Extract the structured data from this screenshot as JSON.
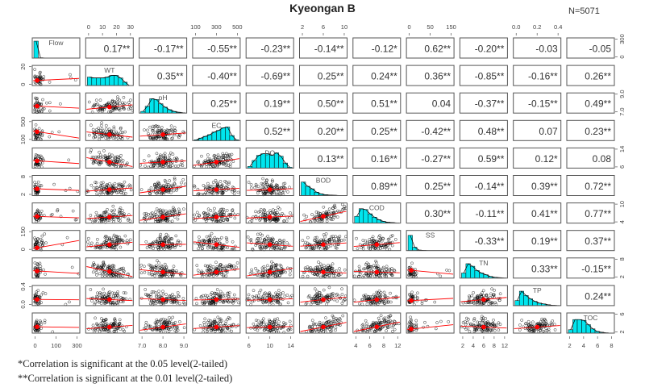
{
  "chart_data": {
    "type": "scatter-matrix",
    "title": "Kyeongan B",
    "annotation": "N=5071",
    "variables": [
      "Flow",
      "WT",
      "pH",
      "EC",
      "DO",
      "BOD",
      "COD",
      "SS",
      "TN",
      "TP",
      "TOC"
    ],
    "correlations": [
      [
        "",
        "0.17**",
        "-0.17**",
        "-0.55**",
        "-0.23**",
        "-0.14**",
        "-0.12*",
        "0.62**",
        "-0.20**",
        "-0.03",
        "-0.05"
      ],
      [
        "",
        "",
        "0.35**",
        "-0.40**",
        "-0.69**",
        "0.25**",
        "0.24**",
        "0.36**",
        "-0.85**",
        "-0.16**",
        "0.26**"
      ],
      [
        "",
        "",
        "",
        "0.25**",
        "0.19**",
        "0.50**",
        "0.51**",
        "0.04",
        "-0.37**",
        "-0.15**",
        "0.49**"
      ],
      [
        "",
        "",
        "",
        "",
        "0.52**",
        "0.20**",
        "0.25**",
        "-0.42**",
        "0.48**",
        "0.07",
        "0.23**"
      ],
      [
        "",
        "",
        "",
        "",
        "",
        "0.13**",
        "0.16**",
        "-0.27**",
        "0.59**",
        "0.12*",
        "0.08"
      ],
      [
        "",
        "",
        "",
        "",
        "",
        "",
        "0.89**",
        "0.25**",
        "-0.14**",
        "0.39**",
        "0.72**"
      ],
      [
        "",
        "",
        "",
        "",
        "",
        "",
        "",
        "0.30**",
        "-0.11**",
        "0.41**",
        "0.77**"
      ],
      [
        "",
        "",
        "",
        "",
        "",
        "",
        "",
        "",
        "-0.33**",
        "0.19**",
        "0.37**"
      ],
      [
        "",
        "",
        "",
        "",
        "",
        "",
        "",
        "",
        "",
        "0.33**",
        "-0.15**"
      ],
      [
        "",
        "",
        "",
        "",
        "",
        "",
        "",
        "",
        "",
        "",
        "0.24**"
      ],
      [
        "",
        "",
        "",
        "",
        "",
        "",
        "",
        "",
        "",
        "",
        ""
      ]
    ],
    "histograms": {
      "Flow": [
        1.0,
        0.02,
        0.01,
        0.01,
        0,
        0,
        0,
        0,
        0,
        0
      ],
      "WT": [
        0.5,
        0.45,
        0.45,
        0.45,
        0.5,
        0.6,
        0.6,
        0.45,
        0.2,
        0
      ],
      "pH": [
        0.1,
        0.4,
        0.85,
        0.8,
        0.55,
        0.35,
        0.2,
        0.1,
        0.05,
        0.02
      ],
      "EC": [
        0.05,
        0.15,
        0.25,
        0.35,
        0.5,
        0.6,
        0.75,
        0.8,
        0.3,
        0.05
      ],
      "DO": [
        0.1,
        0.45,
        0.75,
        0.85,
        0.85,
        0.75,
        0.9,
        0.7,
        0.3,
        0.05
      ],
      "BOD": [
        0.8,
        0.55,
        0.4,
        0.2,
        0.1,
        0.05,
        0.03,
        0.02,
        0.01,
        0.01
      ],
      "COD": [
        0.4,
        0.85,
        0.8,
        0.55,
        0.35,
        0.2,
        0.1,
        0.05,
        0.03,
        0.01
      ],
      "SS": [
        0.9,
        0.2,
        0.03,
        0.01,
        0,
        0,
        0,
        0,
        0,
        0
      ],
      "TN": [
        0.3,
        0.85,
        0.7,
        0.45,
        0.3,
        0.2,
        0.1,
        0.05,
        0.03,
        0.01
      ],
      "TP": [
        0.3,
        0.85,
        0.6,
        0.4,
        0.25,
        0.15,
        0.1,
        0.05,
        0.02,
        0.01
      ],
      "TOC": [
        0.2,
        0.8,
        0.8,
        0.75,
        0.5,
        0.25,
        0.1,
        0.05,
        0.02,
        0
      ]
    },
    "top_axis": {
      "WT": [
        "0",
        "10",
        "20",
        "30"
      ],
      "EC": [
        "100",
        "300",
        "500"
      ],
      "BOD": [
        "2",
        "6",
        "10"
      ],
      "SS": [
        "0",
        "50",
        "150"
      ],
      "TP": [
        "0.0",
        "0.2",
        "0.4"
      ]
    },
    "bottom_axis": {
      "Flow": [
        "0",
        "100",
        "300"
      ],
      "pH": [
        "7.0",
        "8.0",
        "9.0"
      ],
      "DO": [
        "6",
        "10",
        "14"
      ],
      "COD": [
        "4",
        "6",
        "8",
        "12"
      ],
      "TN": [
        "2",
        "4",
        "6",
        "8",
        "12"
      ],
      "TOC": [
        "2",
        "4",
        "6",
        "8"
      ]
    },
    "left_axis": {
      "WT": [
        "0",
        "20"
      ],
      "EC": [
        "100",
        "500"
      ],
      "BOD": [
        "2",
        "8"
      ],
      "SS": [
        "0",
        "150"
      ],
      "TP": [
        "0.0",
        "0.4"
      ]
    },
    "right_axis": {
      "Flow": [
        "0",
        "300"
      ],
      "pH": [
        "7.0",
        "9.0"
      ],
      "DO": [
        "6",
        "14"
      ],
      "COD": [
        "4",
        "10"
      ],
      "TN": [
        "2",
        "8"
      ],
      "TOC": [
        "2",
        "6"
      ]
    },
    "colors": {
      "histogram": "#00e5ee",
      "smoother": "#ff0000",
      "points": "#000000"
    }
  },
  "footnotes": [
    "*Correlation  is  significant  at the  0.05  level(2-tailed)",
    "**Correlation  is  significant  at the  0.01  level(2-tailed)"
  ]
}
